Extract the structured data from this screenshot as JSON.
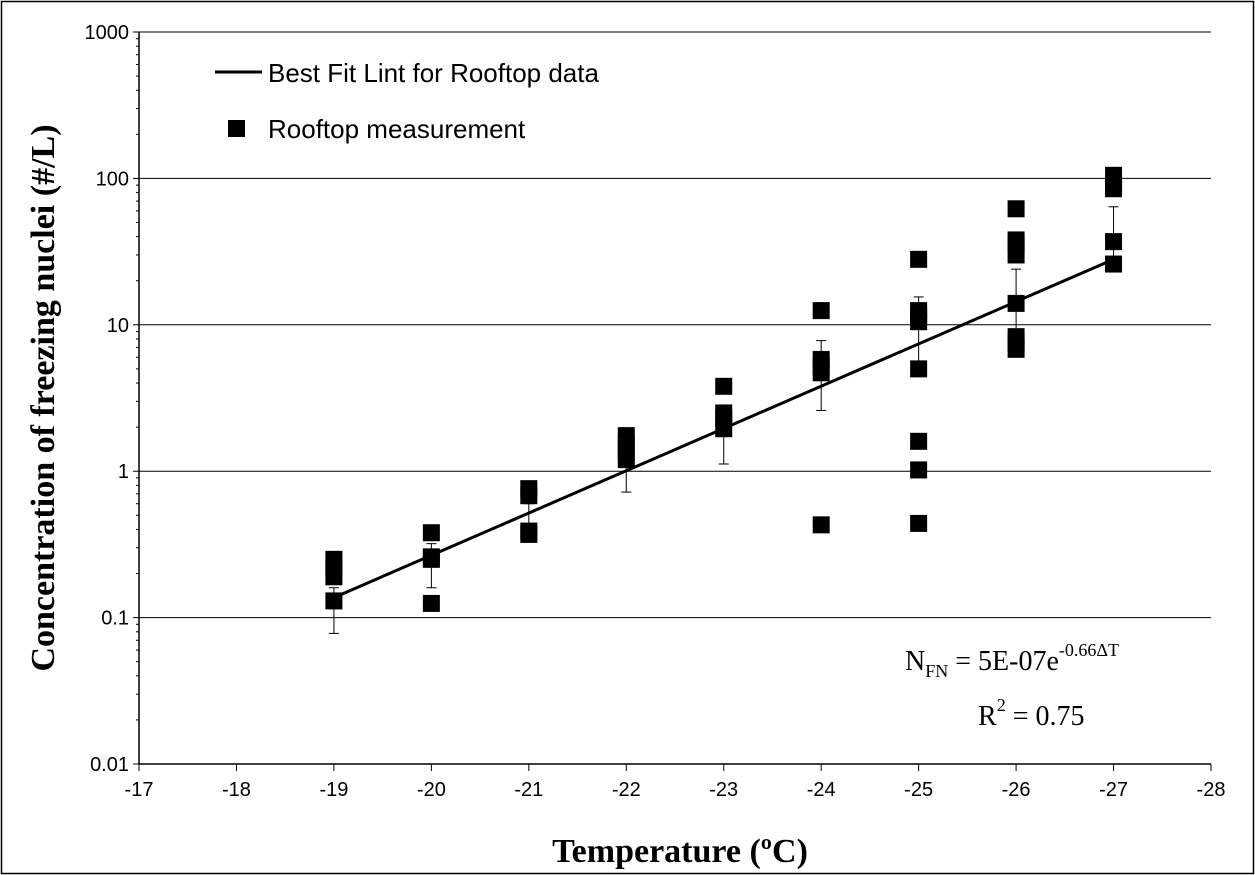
{
  "chart_data": {
    "type": "scatter",
    "title": "",
    "xlabel": "Temperature (ºC)",
    "ylabel": "Concentration of freezing nuclei (#/L)",
    "x_reversed": true,
    "xlim": [
      -17,
      -28
    ],
    "x_ticks": [
      -17,
      -18,
      -19,
      -20,
      -21,
      -22,
      -23,
      -24,
      -25,
      -26,
      -27,
      -28
    ],
    "x_tick_labels": [
      "-17",
      "-18",
      "-19",
      "-20",
      "-21",
      "-22",
      "-23",
      "-24",
      "-25",
      "-26",
      "-27",
      "-28"
    ],
    "y_scale": "log",
    "ylim": [
      0.01,
      1000
    ],
    "y_ticks": [
      0.01,
      0.1,
      1,
      10,
      100,
      1000
    ],
    "y_tick_labels": [
      "0.01",
      "0.1",
      "1",
      "10",
      "100",
      "1000"
    ],
    "grid": "horizontal major",
    "legend": {
      "placement": "top-left",
      "entries": [
        {
          "label": "Best Fit Lint for Rooftop data",
          "symbol": "line"
        },
        {
          "label": "Rooftop measurement",
          "symbol": "square"
        }
      ]
    },
    "series": [
      {
        "name": "Rooftop measurement",
        "marker": "square",
        "color": "#000000",
        "points": [
          {
            "x": -19,
            "y": 0.25
          },
          {
            "x": -19,
            "y": 0.22
          },
          {
            "x": -19,
            "y": 0.19
          },
          {
            "x": -19,
            "y": 0.13
          },
          {
            "x": -20,
            "y": 0.38
          },
          {
            "x": -20,
            "y": 0.26
          },
          {
            "x": -20,
            "y": 0.25
          },
          {
            "x": -20,
            "y": 0.125
          },
          {
            "x": -21,
            "y": 0.76
          },
          {
            "x": -21,
            "y": 0.68
          },
          {
            "x": -21,
            "y": 0.39
          },
          {
            "x": -21,
            "y": 0.37
          },
          {
            "x": -22,
            "y": 1.75
          },
          {
            "x": -22,
            "y": 1.55
          },
          {
            "x": -22,
            "y": 1.35
          },
          {
            "x": -22,
            "y": 1.2
          },
          {
            "x": -23,
            "y": 3.8
          },
          {
            "x": -23,
            "y": 2.5
          },
          {
            "x": -23,
            "y": 2.3
          },
          {
            "x": -23,
            "y": 1.95
          },
          {
            "x": -24,
            "y": 12.5
          },
          {
            "x": -24,
            "y": 5.8
          },
          {
            "x": -24,
            "y": 5.2
          },
          {
            "x": -24,
            "y": 4.7
          },
          {
            "x": -24,
            "y": 0.43
          },
          {
            "x": -25,
            "y": 28
          },
          {
            "x": -25,
            "y": 12.5
          },
          {
            "x": -25,
            "y": 11.5
          },
          {
            "x": -25,
            "y": 10.5
          },
          {
            "x": -25,
            "y": 5
          },
          {
            "x": -25,
            "y": 1.6
          },
          {
            "x": -25,
            "y": 1.02
          },
          {
            "x": -25,
            "y": 0.44
          },
          {
            "x": -26,
            "y": 62
          },
          {
            "x": -26,
            "y": 38
          },
          {
            "x": -26,
            "y": 35
          },
          {
            "x": -26,
            "y": 30
          },
          {
            "x": -26,
            "y": 14
          },
          {
            "x": -26,
            "y": 8.3
          },
          {
            "x": -26,
            "y": 7.5
          },
          {
            "x": -26,
            "y": 6.8
          },
          {
            "x": -27,
            "y": 105
          },
          {
            "x": -27,
            "y": 92
          },
          {
            "x": -27,
            "y": 85
          },
          {
            "x": -27,
            "y": 37
          },
          {
            "x": -27,
            "y": 26
          }
        ]
      },
      {
        "name": "Best Fit Lint for Rooftop data",
        "type": "line",
        "color": "#000000",
        "x": [
          -19,
          -27
        ],
        "y": [
          0.137,
          28
        ]
      }
    ],
    "error_bars": [
      {
        "x": -19,
        "center": 0.138,
        "low": 0.078,
        "high": 0.16
      },
      {
        "x": -20,
        "center": 0.27,
        "low": 0.16,
        "high": 0.32
      },
      {
        "x": -21,
        "center": 0.52,
        "low": 0.4,
        "high": 0.6
      },
      {
        "x": -22,
        "center": 1.0,
        "low": 0.72,
        "high": 1.2
      },
      {
        "x": -23,
        "center": 1.9,
        "low": 1.12,
        "high": 2.4
      },
      {
        "x": -24,
        "center": 3.7,
        "low": 2.6,
        "high": 7.8
      },
      {
        "x": -25,
        "center": 7.2,
        "low": 5.0,
        "high": 15.5
      },
      {
        "x": -26,
        "center": 14,
        "low": 9.0,
        "high": 24
      },
      {
        "x": -27,
        "center": 28,
        "low": 25,
        "high": 64
      }
    ],
    "annotations": {
      "equation_main": "N",
      "equation_sub": "FN",
      "equation_mid": " = 5E-07e",
      "equation_sup": "-0.66ΔT",
      "r2_main": "R",
      "r2_sup": "2",
      "r2_value": " = 0.75"
    }
  }
}
